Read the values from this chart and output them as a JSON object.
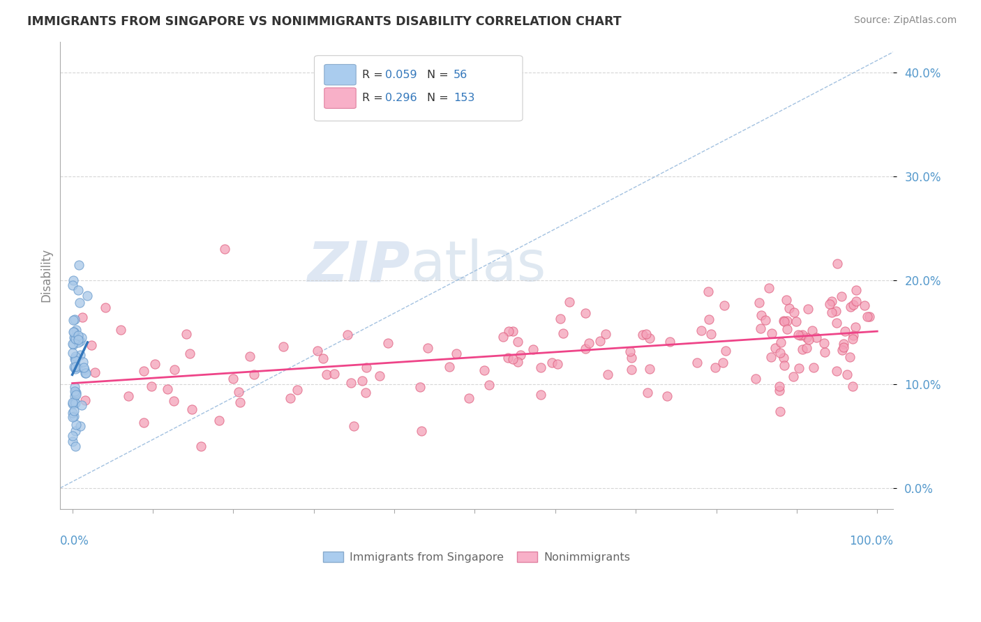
{
  "title": "IMMIGRANTS FROM SINGAPORE VS NONIMMIGRANTS DISABILITY CORRELATION CHART",
  "source": "Source: ZipAtlas.com",
  "ylabel": "Disability",
  "watermark_zip": "ZIP",
  "watermark_atlas": "atlas",
  "blue_color": "#a8c8e8",
  "blue_edge_color": "#6699cc",
  "pink_color": "#f4a0b8",
  "pink_edge_color": "#e06080",
  "blue_line_color": "#3377bb",
  "pink_line_color": "#ee4488",
  "diag_line_color": "#99bbdd",
  "grid_color": "#cccccc",
  "axis_label_color": "#5599cc",
  "ylabel_color": "#888888",
  "title_color": "#333333",
  "source_color": "#888888",
  "legend_text_color": "#333333",
  "legend_value_color": "#3377bb",
  "legend_border_color": "#cccccc",
  "bottom_legend_text_color": "#666666"
}
